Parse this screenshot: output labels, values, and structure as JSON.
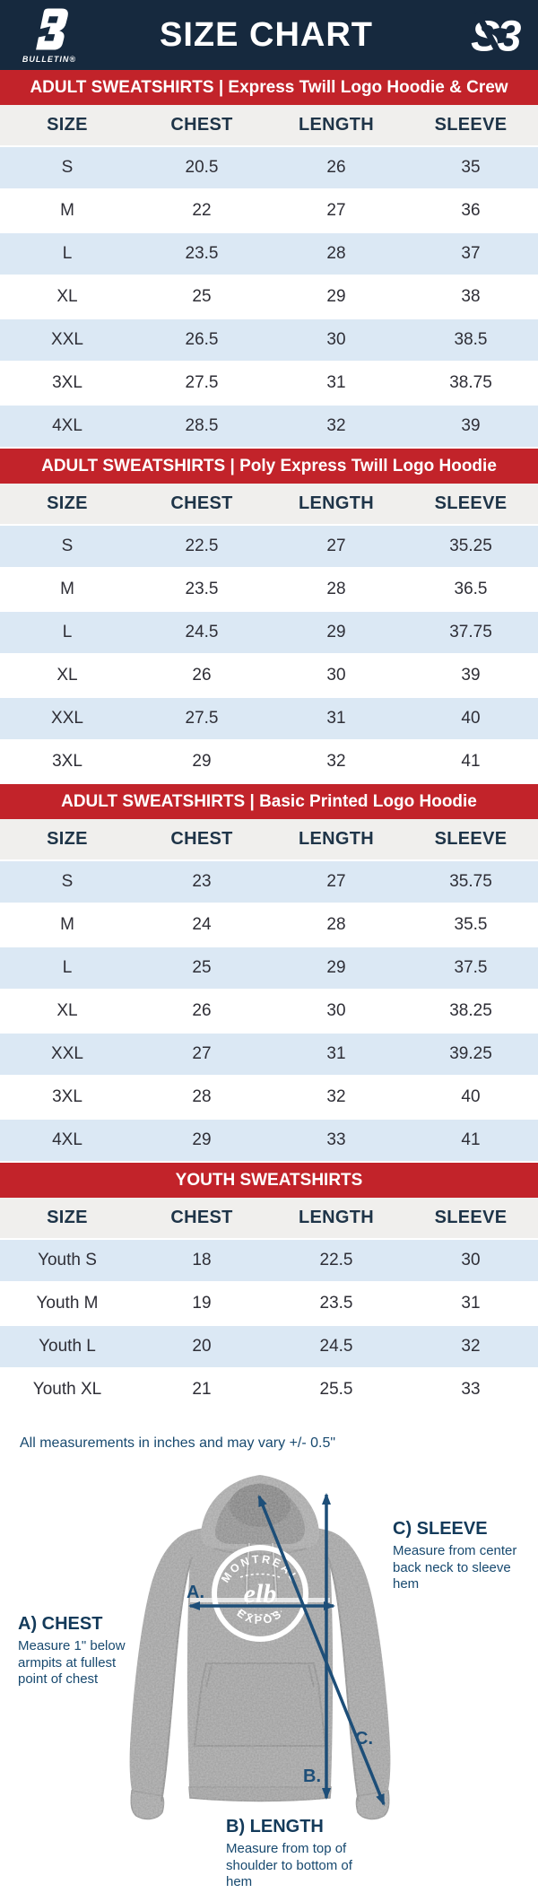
{
  "header": {
    "title": "SIZE CHART",
    "brand_left": {
      "name": "BULLETIN®"
    },
    "brand_right": {
      "mark": "S3"
    }
  },
  "columns": [
    "SIZE",
    "CHEST",
    "LENGTH",
    "SLEEVE"
  ],
  "tables": [
    {
      "banner": "ADULT SWEATSHIRTS | Express Twill Logo Hoodie & Crew",
      "rows": [
        [
          "S",
          "20.5",
          "26",
          "35"
        ],
        [
          "M",
          "22",
          "27",
          "36"
        ],
        [
          "L",
          "23.5",
          "28",
          "37"
        ],
        [
          "XL",
          "25",
          "29",
          "38"
        ],
        [
          "XXL",
          "26.5",
          "30",
          "38.5"
        ],
        [
          "3XL",
          "27.5",
          "31",
          "38.75"
        ],
        [
          "4XL",
          "28.5",
          "32",
          "39"
        ]
      ]
    },
    {
      "banner": "ADULT SWEATSHIRTS | Poly Express Twill Logo Hoodie",
      "rows": [
        [
          "S",
          "22.5",
          "27",
          "35.25"
        ],
        [
          "M",
          "23.5",
          "28",
          "36.5"
        ],
        [
          "L",
          "24.5",
          "29",
          "37.75"
        ],
        [
          "XL",
          "26",
          "30",
          "39"
        ],
        [
          "XXL",
          "27.5",
          "31",
          "40"
        ],
        [
          "3XL",
          "29",
          "32",
          "41"
        ]
      ]
    },
    {
      "banner": "ADULT SWEATSHIRTS | Basic Printed Logo Hoodie",
      "rows": [
        [
          "S",
          "23",
          "27",
          "35.75"
        ],
        [
          "M",
          "24",
          "28",
          "35.5"
        ],
        [
          "L",
          "25",
          "29",
          "37.5"
        ],
        [
          "XL",
          "26",
          "30",
          "38.25"
        ],
        [
          "XXL",
          "27",
          "31",
          "39.25"
        ],
        [
          "3XL",
          "28",
          "32",
          "40"
        ],
        [
          "4XL",
          "29",
          "33",
          "41"
        ]
      ]
    },
    {
      "banner": "YOUTH SWEATSHIRTS",
      "rows": [
        [
          "Youth S",
          "18",
          "22.5",
          "30"
        ],
        [
          "Youth M",
          "19",
          "23.5",
          "31"
        ],
        [
          "Youth L",
          "20",
          "24.5",
          "32"
        ],
        [
          "Youth XL",
          "21",
          "25.5",
          "33"
        ]
      ]
    }
  ],
  "footnote": "All measurements in inches and may vary +/- 0.5\"",
  "diagram": {
    "chest": {
      "label": "A.",
      "title": "A) CHEST",
      "desc": "Measure 1\" below armpits at fullest point of chest"
    },
    "length": {
      "label": "B.",
      "title": "B) LENGTH",
      "desc": "Measure from top of shoulder to bottom of hem"
    },
    "sleeve": {
      "label": "C.",
      "title": "C) SLEEVE",
      "desc": "Measure from center back neck to sleeve hem"
    },
    "logo": {
      "top": "MONTREAL",
      "bottom": "EXPOS",
      "center": "elb"
    }
  },
  "colors": {
    "navy_header": "#16293e",
    "banner_red": "#c2232a",
    "row_blue": "#dbe8f4",
    "head_gray": "#f0efed",
    "head_text": "#1e3448",
    "note_text": "#17496f",
    "arrow_blue": "#1d4e78",
    "hoodie_gray": "#9d9d9d"
  }
}
